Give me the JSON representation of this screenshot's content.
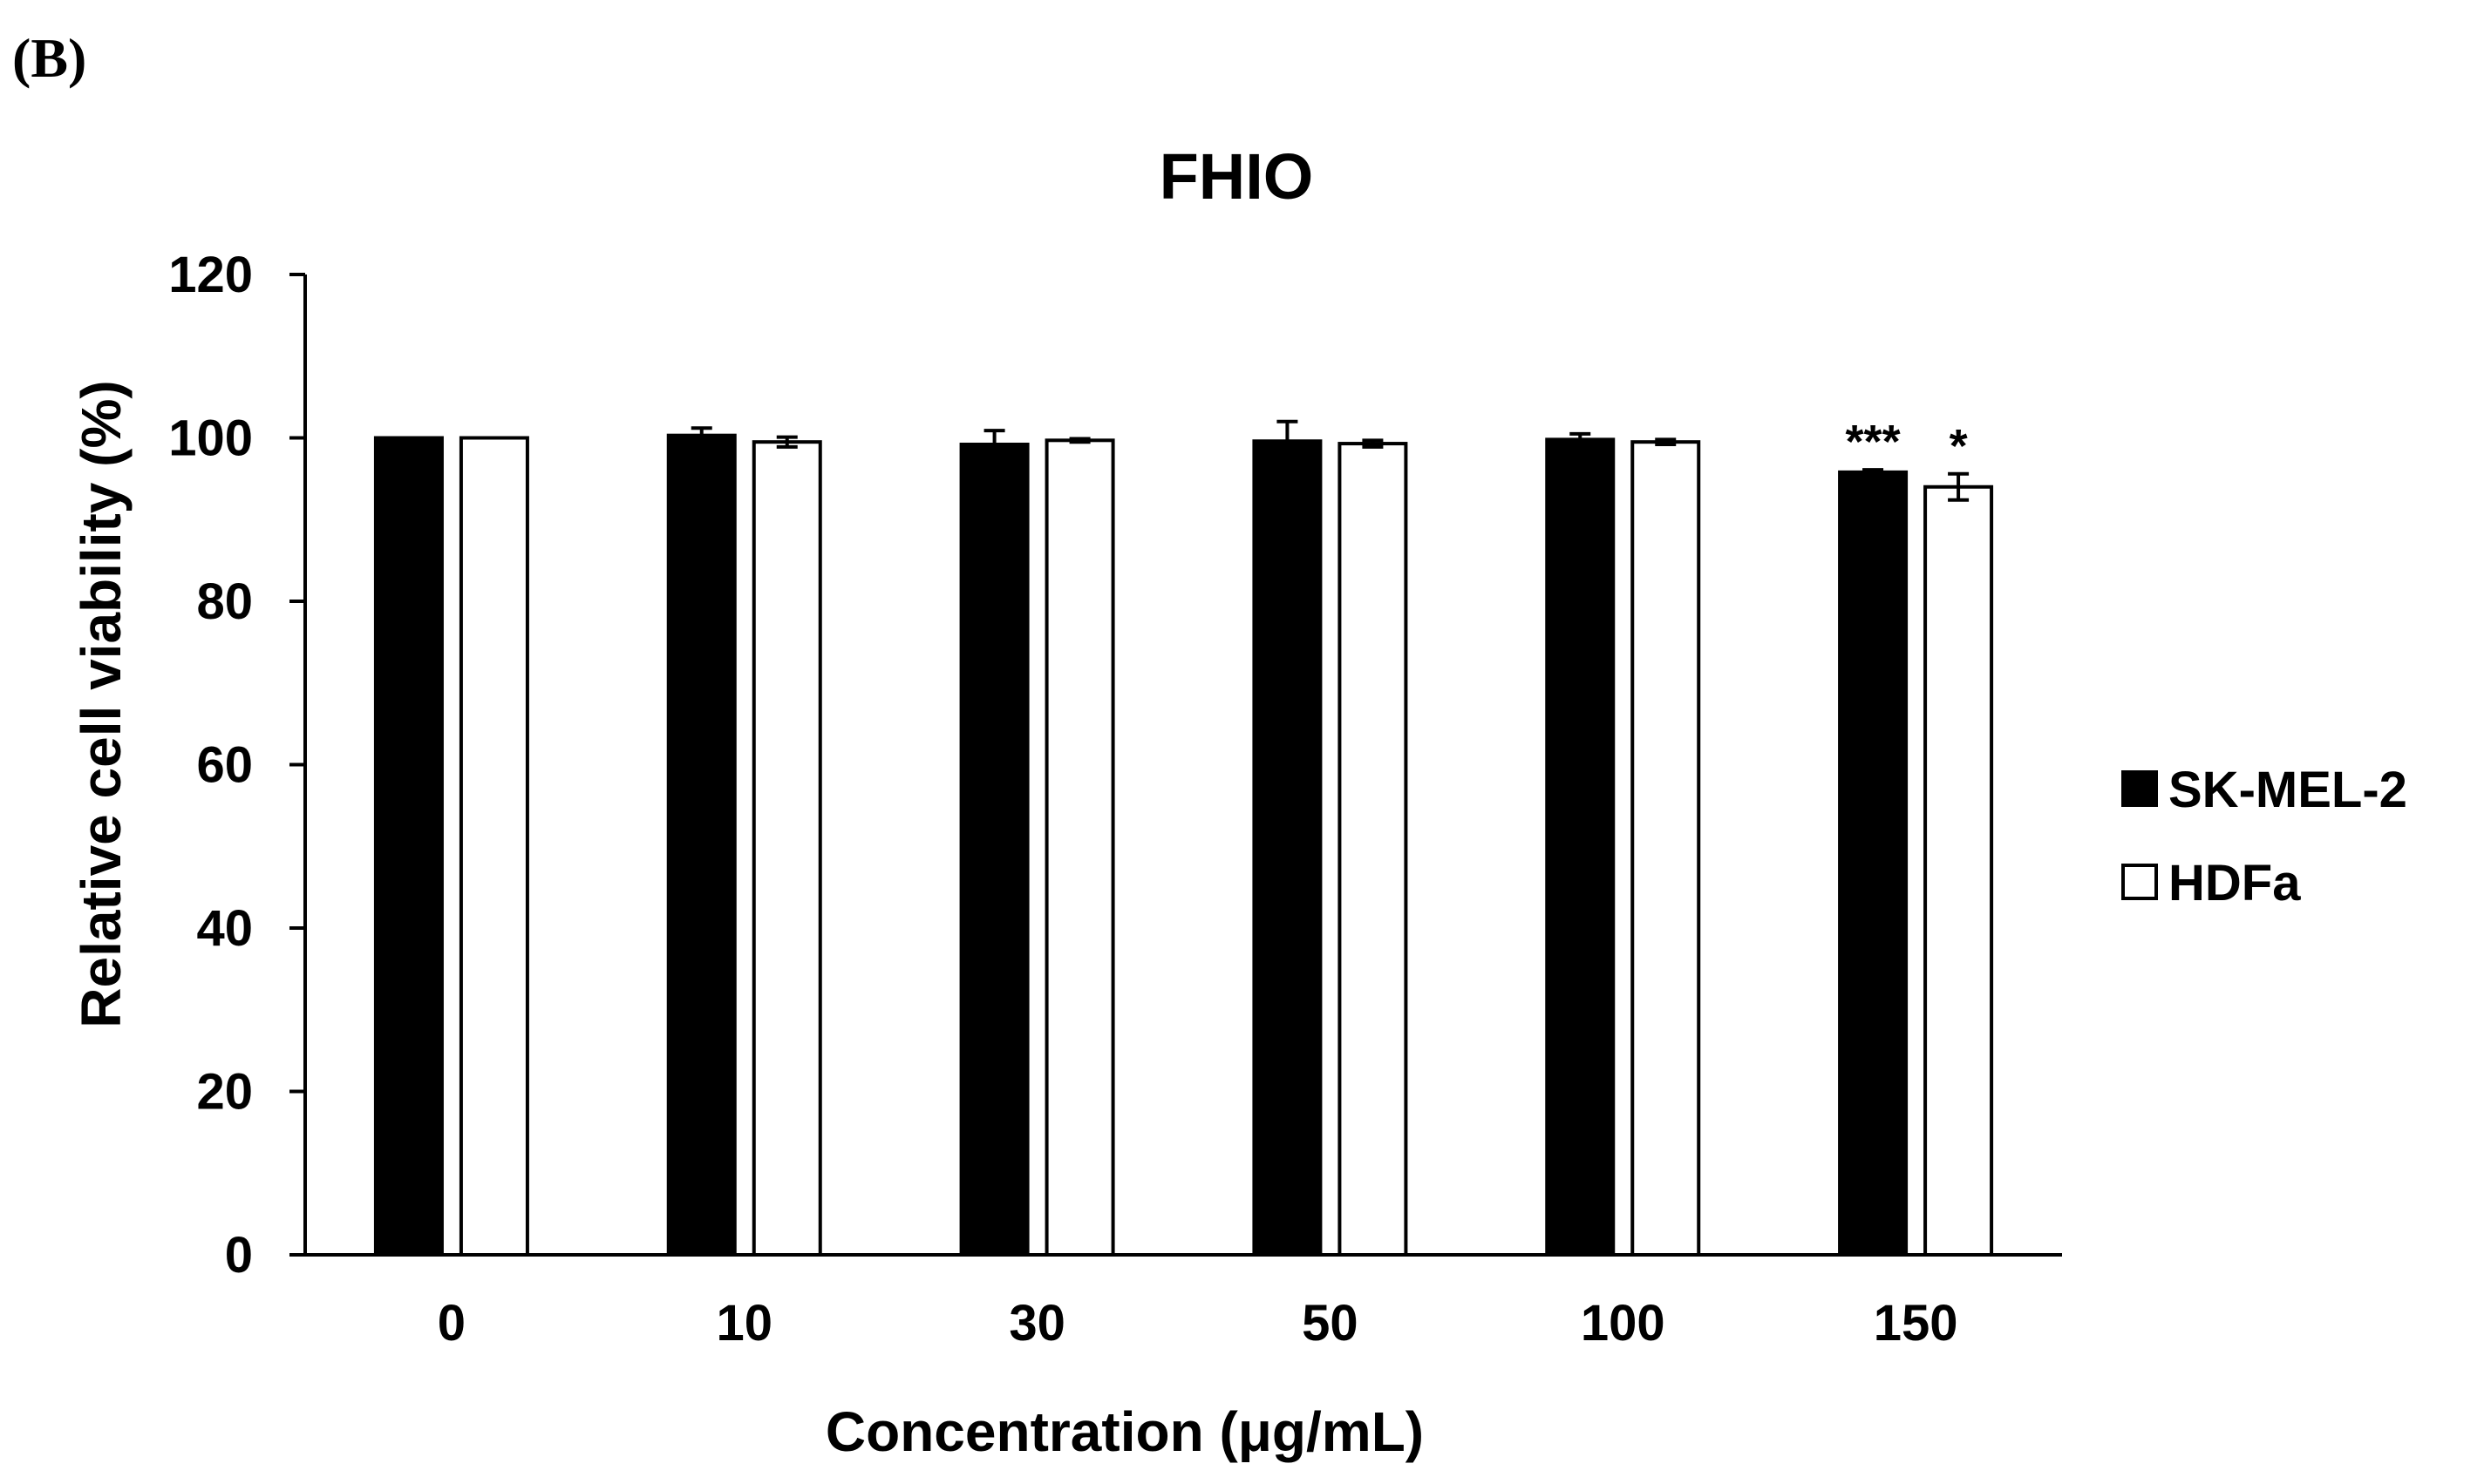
{
  "panel_label": "(B)",
  "chart_data": {
    "type": "bar",
    "title": "FHIO",
    "xlabel": "Concentration (μg/mL)",
    "ylabel": "Relative cell viability (%)",
    "ylim": [
      0,
      120
    ],
    "yticks": [
      0,
      20,
      40,
      60,
      80,
      100,
      120
    ],
    "categories": [
      "0",
      "10",
      "30",
      "50",
      "100",
      "150"
    ],
    "series": [
      {
        "name": "SK-MEL-2",
        "color": "#000000",
        "values": [
          100,
          100.3,
          99.2,
          99.6,
          99.8,
          95.8
        ],
        "errors": [
          0,
          0.9,
          1.7,
          2.4,
          0.7,
          0.3
        ],
        "significance": [
          "",
          "",
          "",
          "",
          "",
          "***"
        ]
      },
      {
        "name": "HDFa",
        "color": "#ffffff",
        "values": [
          100,
          99.5,
          99.7,
          99.3,
          99.5,
          94.0
        ],
        "errors": [
          0,
          0.6,
          0.2,
          0.4,
          0.3,
          1.6
        ],
        "significance": [
          "",
          "",
          "",
          "",
          "",
          "*"
        ]
      }
    ],
    "legend_position": "right",
    "grid": false
  }
}
